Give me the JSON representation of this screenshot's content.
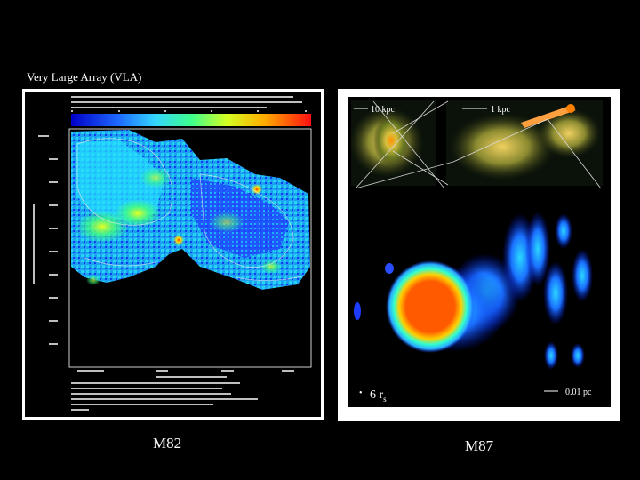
{
  "slide": {
    "title": "Very Large Array (VLA)",
    "background_color": "#000000"
  },
  "left_panel": {
    "caption": "M82"
  },
  "right_panel": {
    "caption": "M87",
    "scale_labels": {
      "large": "10 kpc",
      "medium": "1 kpc",
      "small": "0.01 pc"
    },
    "rs_label_prefix": "6 r",
    "rs_label_sub": "s"
  },
  "colors": {
    "frame": "#ffffff",
    "panel_bg": "#000000",
    "jet_core": "#ff5a00",
    "jet_halo": "#2a6cff",
    "radio_low": "#1a3cff",
    "radio_high": "#ff2000"
  }
}
